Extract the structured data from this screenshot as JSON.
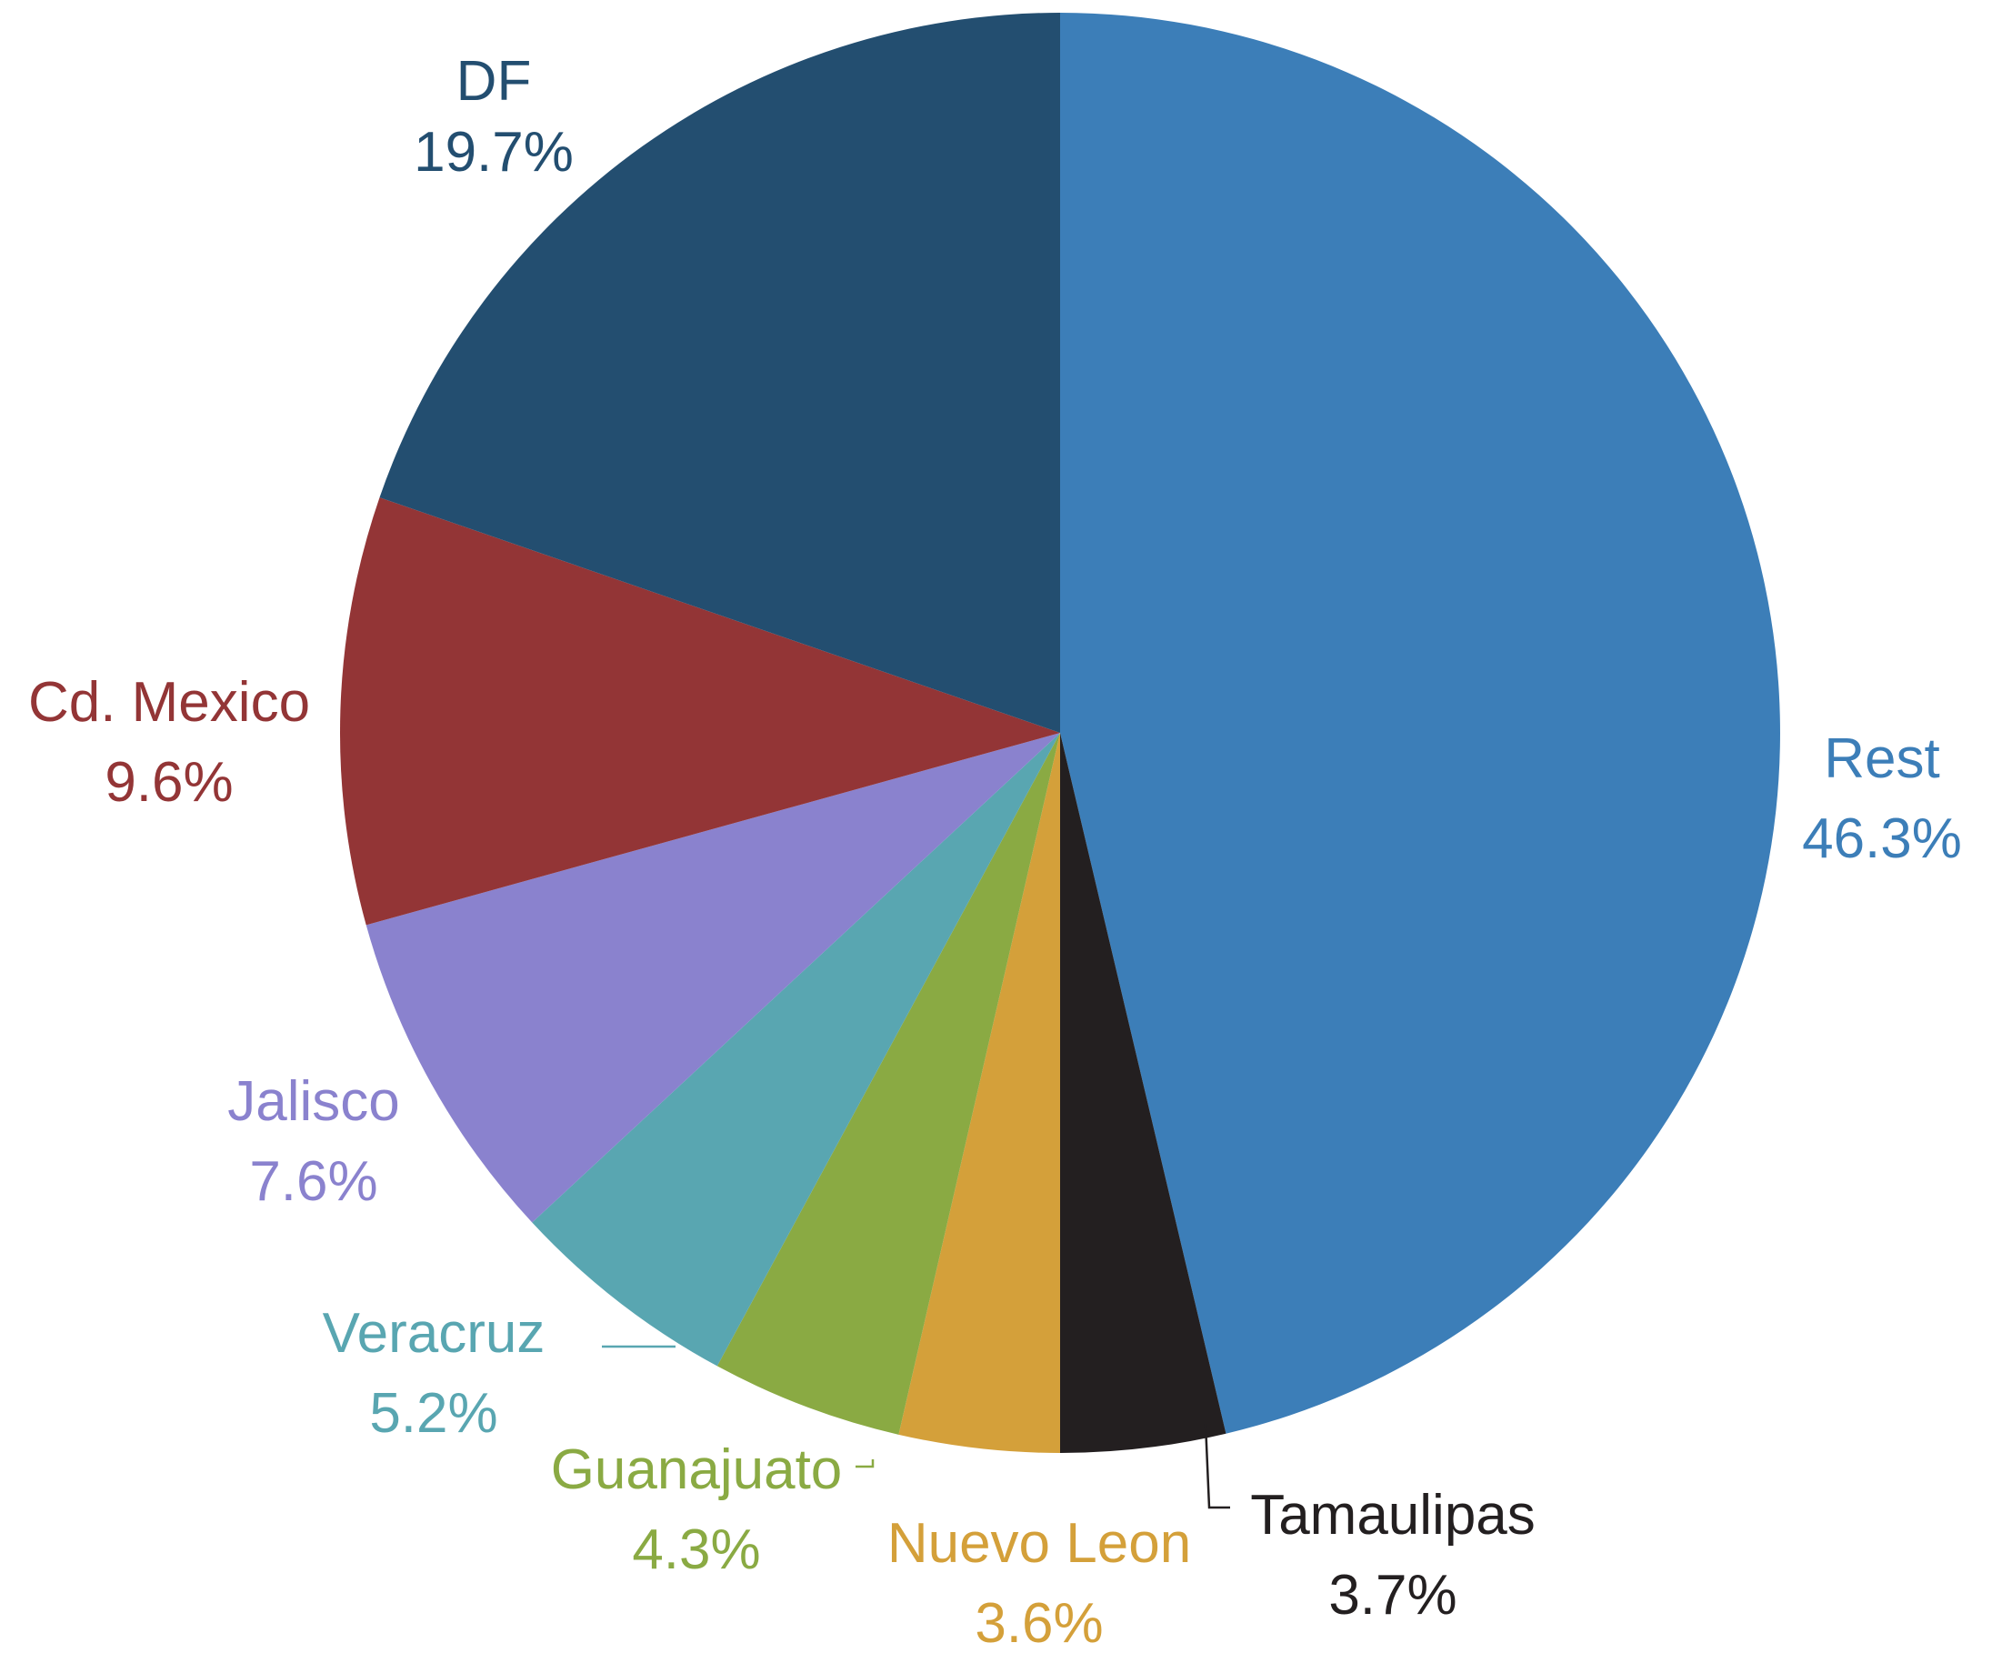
{
  "chart_data": {
    "type": "pie",
    "start_angle_deg": 0,
    "direction": "clockwise",
    "slices": [
      {
        "label": "Rest",
        "value": 46.3,
        "value_label": "46.3%",
        "color": "#3C7EB8"
      },
      {
        "label": "Tamaulipas",
        "value": 3.7,
        "value_label": "3.7%",
        "color": "#231F20",
        "label_color": "#231F20"
      },
      {
        "label": "Nuevo Leon",
        "value": 3.6,
        "value_label": "3.6%",
        "color": "#D4A03A"
      },
      {
        "label": "Guanajuato",
        "value": 4.3,
        "value_label": "4.3%",
        "color": "#8AAA43"
      },
      {
        "label": "Veracruz",
        "value": 5.2,
        "value_label": "5.2%",
        "color": "#59A6B1"
      },
      {
        "label": "Jalisco",
        "value": 7.6,
        "value_label": "7.6%",
        "color": "#8A82CE"
      },
      {
        "label": "Cd. Mexico",
        "value": 9.6,
        "value_label": "9.6%",
        "color": "#933536"
      },
      {
        "label": "DF",
        "value": 19.7,
        "value_label": "19.7%",
        "color": "#234E70"
      }
    ]
  }
}
